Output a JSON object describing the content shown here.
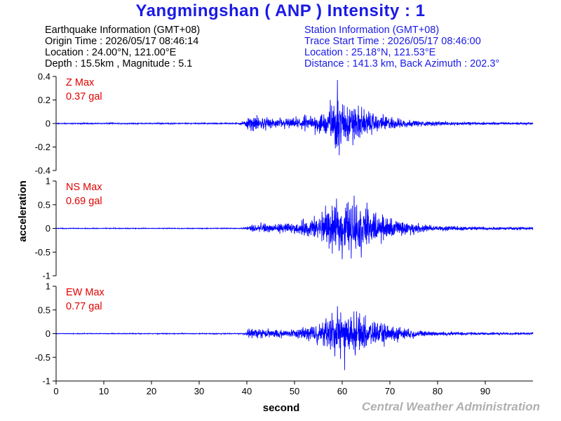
{
  "title": "Yangmingshan ( ANP ) Intensity : 1",
  "earthquake_info": {
    "header": "Earthquake Information (GMT+08)",
    "origin_time": "Origin Time : 2026/05/17 08:46:14",
    "location": "Location : 24.00°N, 121.00°E",
    "depth_magnitude": "Depth : 15.5km , Magnitude : 5.1"
  },
  "station_info": {
    "header": "Station Information (GMT+08)",
    "trace_start": "Trace Start Time : 2026/05/17 08:46:00",
    "location": "Location : 25.18°N, 121.53°E",
    "distance": "Distance : 141.3 km, Back Azimuth : 202.3°"
  },
  "credit": "Central Weather Administration",
  "colors": {
    "trace": "#0000ff",
    "title": "#1a1ae6",
    "max_label": "#e00000",
    "credit": "#b0b0b0"
  },
  "chart_data": {
    "type": "line",
    "xlabel": "second",
    "ylabel": "acceleration",
    "xlim": [
      0,
      100
    ],
    "x_ticks": [
      0,
      10,
      20,
      30,
      40,
      50,
      60,
      70,
      80,
      90
    ],
    "grid": false,
    "panels": [
      {
        "component": "Z",
        "max_label": "Z Max",
        "max_value": "0.37 gal",
        "ylim": [
          -0.4,
          0.4
        ],
        "y_ticks": [
          0.4,
          0.2,
          0,
          -0.2,
          -0.4
        ],
        "y_tick_labels": [
          "0.4",
          "0.2",
          "0",
          "-0.2",
          "-0.4"
        ],
        "envelope": [
          [
            0,
            0.005
          ],
          [
            38,
            0.006
          ],
          [
            39.5,
            0.02
          ],
          [
            40,
            0.06
          ],
          [
            42,
            0.07
          ],
          [
            45,
            0.05
          ],
          [
            50,
            0.05
          ],
          [
            55,
            0.09
          ],
          [
            57,
            0.15
          ],
          [
            59,
            0.28
          ],
          [
            60,
            0.2
          ],
          [
            63,
            0.17
          ],
          [
            66,
            0.1
          ],
          [
            70,
            0.06
          ],
          [
            75,
            0.03
          ],
          [
            80,
            0.02
          ],
          [
            90,
            0.012
          ],
          [
            100,
            0.01
          ]
        ],
        "peaks": [
          [
            59,
            0.37
          ],
          [
            59.4,
            -0.27
          ],
          [
            57.5,
            0.2
          ]
        ]
      },
      {
        "component": "NS",
        "max_label": "NS Max",
        "max_value": "0.69 gal",
        "ylim": [
          -1,
          1
        ],
        "y_ticks": [
          1,
          0.5,
          0,
          -0.5,
          -1
        ],
        "y_tick_labels": [
          "1",
          "0.5",
          "0",
          "-0.5",
          "-1"
        ],
        "envelope": [
          [
            0,
            0.008
          ],
          [
            39,
            0.01
          ],
          [
            40,
            0.05
          ],
          [
            41.5,
            0.12
          ],
          [
            45,
            0.1
          ],
          [
            50,
            0.12
          ],
          [
            55,
            0.3
          ],
          [
            58,
            0.5
          ],
          [
            61,
            0.6
          ],
          [
            64,
            0.55
          ],
          [
            67,
            0.4
          ],
          [
            70,
            0.25
          ],
          [
            75,
            0.12
          ],
          [
            80,
            0.06
          ],
          [
            90,
            0.04
          ],
          [
            100,
            0.03
          ]
        ],
        "peaks": [
          [
            62.5,
            0.69
          ],
          [
            60,
            -0.65
          ],
          [
            56.5,
            0.48
          ]
        ]
      },
      {
        "component": "EW",
        "max_label": "EW Max",
        "max_value": "0.77 gal",
        "ylim": [
          -1,
          1
        ],
        "y_ticks": [
          1,
          0.5,
          0,
          -0.5,
          -1
        ],
        "y_tick_labels": [
          "1",
          "0.5",
          "0",
          "-0.5",
          "-1"
        ],
        "envelope": [
          [
            0,
            0.008
          ],
          [
            39,
            0.01
          ],
          [
            40,
            0.06
          ],
          [
            41,
            0.13
          ],
          [
            44,
            0.1
          ],
          [
            50,
            0.1
          ],
          [
            55,
            0.25
          ],
          [
            58,
            0.45
          ],
          [
            60,
            0.5
          ],
          [
            63,
            0.4
          ],
          [
            66,
            0.3
          ],
          [
            70,
            0.2
          ],
          [
            75,
            0.1
          ],
          [
            80,
            0.05
          ],
          [
            90,
            0.03
          ],
          [
            100,
            0.025
          ]
        ],
        "peaks": [
          [
            60.5,
            -0.77
          ],
          [
            59,
            0.58
          ],
          [
            63,
            0.47
          ]
        ]
      }
    ]
  }
}
